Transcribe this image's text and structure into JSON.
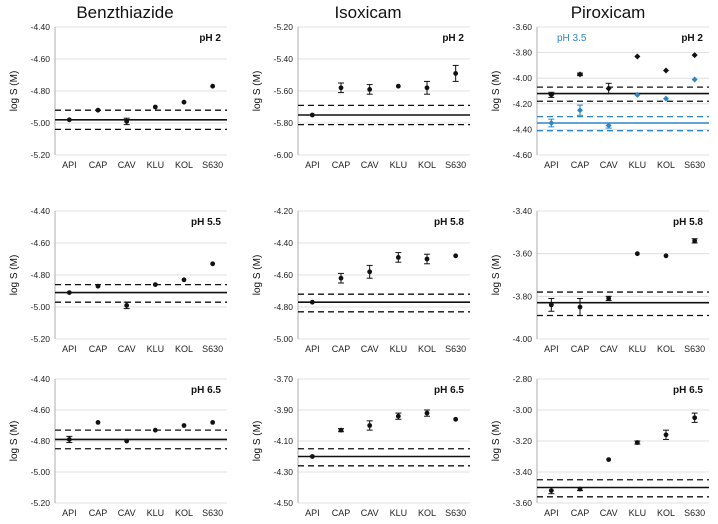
{
  "figure": {
    "column_titles": [
      "Benzthiazide",
      "Isoxicam",
      "Piroxicam"
    ],
    "ylabel": "log S (M)",
    "categories": [
      "API",
      "CAP",
      "CAV",
      "KLU",
      "KOL",
      "S630"
    ],
    "colors": {
      "black": "#111111",
      "blue": "#2E86C8",
      "grid": "#d9d9d9",
      "axis": "#9a9a9a"
    }
  },
  "chart_data": [
    {
      "type": "scatter",
      "id": "benz-ph2",
      "drug": "Benzthiazide",
      "ph_label": "pH 2",
      "ylim": [
        -5.2,
        -4.4
      ],
      "ticks": [
        -4.4,
        -4.6,
        -4.8,
        -5.0,
        -5.2
      ],
      "tick_labels": [
        "-4.40",
        "-4.60",
        "-4.80",
        "-5.00",
        "-5.20"
      ],
      "series": [
        {
          "name": "pH 2",
          "color": "#111111",
          "marker": "circle",
          "values": [
            -4.98,
            -4.92,
            -4.99,
            -4.9,
            -4.87,
            -4.77
          ],
          "errors": [
            0,
            0,
            0.02,
            0,
            0,
            0
          ]
        }
      ],
      "ref_lines": [
        {
          "y": -4.98,
          "style": "solid",
          "color": "#111111"
        },
        {
          "y": -4.92,
          "style": "dashed",
          "color": "#111111"
        },
        {
          "y": -5.04,
          "style": "dashed",
          "color": "#111111"
        }
      ]
    },
    {
      "type": "scatter",
      "id": "isox-ph2",
      "drug": "Isoxicam",
      "ph_label": "pH 2",
      "ylim": [
        -6.0,
        -5.2
      ],
      "ticks": [
        -5.2,
        -5.4,
        -5.6,
        -5.8,
        -6.0
      ],
      "tick_labels": [
        "-5.20",
        "-5.40",
        "-5.60",
        "-5.80",
        "-6.00"
      ],
      "series": [
        {
          "name": "pH 2",
          "color": "#111111",
          "marker": "circle",
          "values": [
            -5.75,
            -5.58,
            -5.59,
            -5.57,
            -5.58,
            -5.49
          ],
          "errors": [
            0,
            0.03,
            0.03,
            0,
            0.04,
            0.05
          ]
        }
      ],
      "ref_lines": [
        {
          "y": -5.75,
          "style": "solid",
          "color": "#111111"
        },
        {
          "y": -5.69,
          "style": "dashed",
          "color": "#111111"
        },
        {
          "y": -5.81,
          "style": "dashed",
          "color": "#111111"
        }
      ]
    },
    {
      "type": "scatter",
      "id": "pirox-ph2",
      "drug": "Piroxicam",
      "ph_label": "pH 2",
      "extra_label": "pH 3.5",
      "ylim": [
        -4.6,
        -3.6
      ],
      "ticks": [
        -3.6,
        -3.8,
        -4.0,
        -4.2,
        -4.4,
        -4.6
      ],
      "tick_labels": [
        "-3.60",
        "-3.80",
        "-4.00",
        "-4.20",
        "-4.40",
        "-4.60"
      ],
      "series": [
        {
          "name": "pH 2",
          "color": "#111111",
          "marker": "diamond",
          "values": [
            -4.13,
            -3.97,
            -4.08,
            -3.83,
            -3.94,
            -3.82
          ],
          "errors": [
            0.02,
            0.01,
            0.04,
            0,
            0,
            0
          ]
        },
        {
          "name": "pH 3.5",
          "color": "#2E86C8",
          "marker": "diamond",
          "values": [
            -4.35,
            -4.25,
            -4.37,
            -4.13,
            -4.16,
            -4.01
          ],
          "errors": [
            0.03,
            0.04,
            0.02,
            0,
            0,
            0
          ]
        }
      ],
      "ref_lines": [
        {
          "y": -4.12,
          "style": "solid",
          "color": "#111111"
        },
        {
          "y": -4.07,
          "style": "dashed",
          "color": "#111111"
        },
        {
          "y": -4.18,
          "style": "dashed",
          "color": "#111111"
        },
        {
          "y": -4.35,
          "style": "solid",
          "color": "#2E86C8"
        },
        {
          "y": -4.3,
          "style": "dashed",
          "color": "#2E86C8"
        },
        {
          "y": -4.41,
          "style": "dashed",
          "color": "#2E86C8"
        }
      ]
    },
    {
      "type": "scatter",
      "id": "benz-ph55",
      "drug": "Benzthiazide",
      "ph_label": "pH 5.5",
      "ylim": [
        -5.2,
        -4.4
      ],
      "ticks": [
        -4.4,
        -4.6,
        -4.8,
        -5.0,
        -5.2
      ],
      "tick_labels": [
        "-4.40",
        "-4.60",
        "-4.80",
        "-5.00",
        "-5.20"
      ],
      "series": [
        {
          "name": "pH 5.5",
          "color": "#111111",
          "marker": "circle",
          "values": [
            -4.91,
            -4.87,
            -4.99,
            -4.86,
            -4.83,
            -4.73
          ],
          "errors": [
            0,
            0,
            0.02,
            0,
            0,
            0
          ]
        }
      ],
      "ref_lines": [
        {
          "y": -4.91,
          "style": "solid",
          "color": "#111111"
        },
        {
          "y": -4.86,
          "style": "dashed",
          "color": "#111111"
        },
        {
          "y": -4.97,
          "style": "dashed",
          "color": "#111111"
        }
      ]
    },
    {
      "type": "scatter",
      "id": "isox-ph58",
      "drug": "Isoxicam",
      "ph_label": "pH 5.8",
      "ylim": [
        -5.0,
        -4.2
      ],
      "ticks": [
        -4.2,
        -4.4,
        -4.6,
        -4.8,
        -5.0
      ],
      "tick_labels": [
        "-4.20",
        "-4.40",
        "-4.60",
        "-4.80",
        "-5.00"
      ],
      "series": [
        {
          "name": "pH 5.8",
          "color": "#111111",
          "marker": "circle",
          "values": [
            -4.77,
            -4.62,
            -4.58,
            -4.49,
            -4.5,
            -4.48
          ],
          "errors": [
            0,
            0.03,
            0.04,
            0.03,
            0.03,
            0
          ]
        }
      ],
      "ref_lines": [
        {
          "y": -4.77,
          "style": "solid",
          "color": "#111111"
        },
        {
          "y": -4.72,
          "style": "dashed",
          "color": "#111111"
        },
        {
          "y": -4.83,
          "style": "dashed",
          "color": "#111111"
        }
      ]
    },
    {
      "type": "scatter",
      "id": "pirox-ph58",
      "drug": "Piroxicam",
      "ph_label": "pH 5.8",
      "ylim": [
        -4.0,
        -3.4
      ],
      "ticks": [
        -3.4,
        -3.6,
        -3.8,
        -4.0
      ],
      "tick_labels": [
        "-3.40",
        "-3.60",
        "-3.80",
        "-4.00"
      ],
      "series": [
        {
          "name": "pH 5.8",
          "color": "#111111",
          "marker": "circle",
          "values": [
            -3.84,
            -3.85,
            -3.81,
            -3.6,
            -3.61,
            -3.54
          ],
          "errors": [
            0.03,
            0.04,
            0.01,
            0,
            0,
            0.01
          ]
        }
      ],
      "ref_lines": [
        {
          "y": -3.83,
          "style": "solid",
          "color": "#111111"
        },
        {
          "y": -3.78,
          "style": "dashed",
          "color": "#111111"
        },
        {
          "y": -3.89,
          "style": "dashed",
          "color": "#111111"
        }
      ]
    },
    {
      "type": "scatter",
      "id": "benz-ph65",
      "drug": "Benzthiazide",
      "ph_label": "pH 6.5",
      "ylim": [
        -5.2,
        -4.4
      ],
      "ticks": [
        -4.4,
        -4.6,
        -4.8,
        -5.0,
        -5.2
      ],
      "tick_labels": [
        "-4.40",
        "-4.60",
        "-4.80",
        "-5.00",
        "-5.20"
      ],
      "series": [
        {
          "name": "pH 6.5",
          "color": "#111111",
          "marker": "circle",
          "values": [
            -4.79,
            -4.68,
            -4.8,
            -4.73,
            -4.7,
            -4.68
          ],
          "errors": [
            0.02,
            0,
            0,
            0,
            0,
            0
          ]
        }
      ],
      "ref_lines": [
        {
          "y": -4.79,
          "style": "solid",
          "color": "#111111"
        },
        {
          "y": -4.73,
          "style": "dashed",
          "color": "#111111"
        },
        {
          "y": -4.85,
          "style": "dashed",
          "color": "#111111"
        }
      ]
    },
    {
      "type": "scatter",
      "id": "isox-ph65",
      "drug": "Isoxicam",
      "ph_label": "pH 6.5",
      "ylim": [
        -4.5,
        -3.7
      ],
      "ticks": [
        -3.7,
        -3.9,
        -4.1,
        -4.3,
        -4.5
      ],
      "tick_labels": [
        "-3.70",
        "-3.90",
        "-4.10",
        "-4.30",
        "-4.50"
      ],
      "series": [
        {
          "name": "pH 6.5",
          "color": "#111111",
          "marker": "circle",
          "values": [
            -4.2,
            -4.03,
            -4.0,
            -3.94,
            -3.92,
            -3.96
          ],
          "errors": [
            0,
            0.01,
            0.03,
            0.02,
            0.02,
            0
          ]
        }
      ],
      "ref_lines": [
        {
          "y": -4.2,
          "style": "solid",
          "color": "#111111"
        },
        {
          "y": -4.15,
          "style": "dashed",
          "color": "#111111"
        },
        {
          "y": -4.26,
          "style": "dashed",
          "color": "#111111"
        }
      ]
    },
    {
      "type": "scatter",
      "id": "pirox-ph65",
      "drug": "Piroxicam",
      "ph_label": "pH 6.5",
      "ylim": [
        -3.6,
        -2.8
      ],
      "ticks": [
        -2.8,
        -3.0,
        -3.2,
        -3.4,
        -3.6
      ],
      "tick_labels": [
        "-2.80",
        "-3.00",
        "-3.20",
        "-3.40",
        "-3.60"
      ],
      "series": [
        {
          "name": "pH 6.5",
          "color": "#111111",
          "marker": "circle",
          "values": [
            -3.52,
            -3.51,
            -3.32,
            -3.21,
            -3.16,
            -3.05
          ],
          "errors": [
            0.02,
            0.01,
            0,
            0.01,
            0.03,
            0.03
          ]
        }
      ],
      "ref_lines": [
        {
          "y": -3.5,
          "style": "solid",
          "color": "#111111"
        },
        {
          "y": -3.45,
          "style": "dashed",
          "color": "#111111"
        },
        {
          "y": -3.56,
          "style": "dashed",
          "color": "#111111"
        }
      ]
    }
  ]
}
